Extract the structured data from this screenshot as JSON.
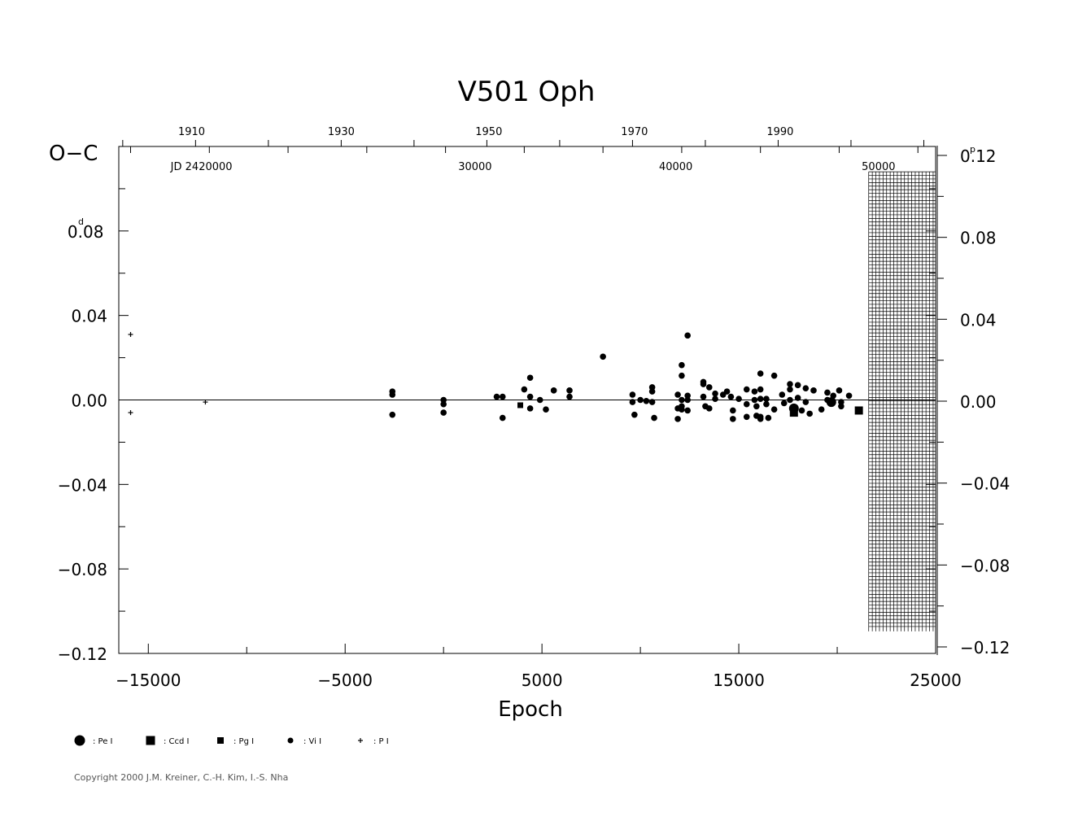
{
  "chart_data": {
    "type": "scatter",
    "title": "V501  Oph",
    "xlabel": "Epoch",
    "ylabel": "O−C",
    "ylabel_unit": "d",
    "right_unit": "p",
    "xlim": [
      -16500,
      25000
    ],
    "ylim": [
      -0.12,
      0.12
    ],
    "right_ylim": [
      -0.12,
      0.12
    ],
    "x_ticks": [
      -15000,
      -5000,
      5000,
      15000,
      25000
    ],
    "x_tick_labels": [
      "−15000",
      "−5000",
      "5000",
      "15000",
      "25000"
    ],
    "y_ticks": [
      0.08,
      0.04,
      0.0,
      -0.04,
      -0.08,
      -0.12
    ],
    "y_tick_labels": [
      "0.08",
      "0.04",
      "0.00",
      "−0.04",
      "−0.08",
      "−0.12"
    ],
    "y_top_label": "0.",
    "right_ticks": [
      0.12,
      0.08,
      0.04,
      0.0,
      -0.04,
      -0.08,
      -0.12
    ],
    "right_tick_labels": [
      "0.12",
      "0.08",
      "0.04",
      "0.00",
      "−0.04",
      "−0.08",
      "−0.12"
    ],
    "year_ticks": [
      {
        "label": "1910",
        "epoch": -12800
      },
      {
        "label": "1930",
        "epoch": -5200
      },
      {
        "label": "1950",
        "epoch": 2300
      },
      {
        "label": "1970",
        "epoch": 9700
      },
      {
        "label": "1990",
        "epoch": 17100
      }
    ],
    "jd_ticks": [
      {
        "label": "JD  2420000",
        "epoch": -12300
      },
      {
        "label": "30000",
        "epoch": 1600
      },
      {
        "label": "40000",
        "epoch": 11800
      },
      {
        "label": "50000",
        "epoch": 22100
      }
    ],
    "zero_line": 0.0,
    "hatched_region": [
      21600,
      25000
    ],
    "legend": [
      {
        "marker": "circle-large",
        "label": ": Pe  I"
      },
      {
        "marker": "square-large",
        "label": ": Ccd  I"
      },
      {
        "marker": "square-small",
        "label": ": Pg  I"
      },
      {
        "marker": "circle-small",
        "label": ": Vi  I"
      },
      {
        "marker": "plus",
        "label": ": P  I"
      }
    ],
    "series": [
      {
        "name": "P I",
        "marker": "plus",
        "points": [
          [
            -15900,
            0.031
          ],
          [
            -15900,
            -0.006
          ],
          [
            -12100,
            -0.001
          ]
        ]
      },
      {
        "name": "Pg I",
        "marker": "square-small",
        "points": [
          [
            3900,
            -0.0025
          ]
        ]
      },
      {
        "name": "Ccd I",
        "marker": "square-large",
        "points": [
          [
            17800,
            -0.006
          ],
          [
            21100,
            -0.005
          ]
        ]
      },
      {
        "name": "Pe I",
        "marker": "circle-large",
        "points": [
          [
            17800,
            -0.004
          ],
          [
            19700,
            -0.001
          ]
        ]
      },
      {
        "name": "Vi I",
        "marker": "circle-small",
        "points": [
          [
            -2600,
            0.004
          ],
          [
            -2600,
            0.0025
          ],
          [
            -2600,
            -0.007
          ],
          [
            0,
            0.0
          ],
          [
            0,
            -0.002
          ],
          [
            0,
            -0.006
          ],
          [
            2700,
            0.0015
          ],
          [
            3000,
            0.0015
          ],
          [
            3000,
            -0.0085
          ],
          [
            4100,
            0.005
          ],
          [
            4400,
            0.0105
          ],
          [
            4400,
            0.0015
          ],
          [
            4400,
            -0.004
          ],
          [
            4900,
            0.0
          ],
          [
            5200,
            -0.0045
          ],
          [
            5600,
            0.0045
          ],
          [
            6400,
            0.0045
          ],
          [
            6400,
            0.0015
          ],
          [
            8100,
            0.0205
          ],
          [
            9600,
            0.0025
          ],
          [
            9600,
            -0.001
          ],
          [
            9700,
            -0.007
          ],
          [
            10000,
            0.0
          ],
          [
            10300,
            -0.0005
          ],
          [
            10600,
            0.006
          ],
          [
            10600,
            0.004
          ],
          [
            10600,
            -0.001
          ],
          [
            10700,
            -0.0085
          ],
          [
            11900,
            0.0025
          ],
          [
            11900,
            -0.004
          ],
          [
            11900,
            -0.009
          ],
          [
            12100,
            0.0165
          ],
          [
            12100,
            0.0115
          ],
          [
            12100,
            0.0
          ],
          [
            12100,
            -0.003
          ],
          [
            12100,
            -0.0045
          ],
          [
            12400,
            0.0305
          ],
          [
            12400,
            0.002
          ],
          [
            12400,
            0.0
          ],
          [
            12400,
            -0.005
          ],
          [
            13200,
            0.0085
          ],
          [
            13200,
            0.0075
          ],
          [
            13200,
            0.0015
          ],
          [
            13300,
            -0.003
          ],
          [
            13500,
            0.006
          ],
          [
            13500,
            -0.004
          ],
          [
            13800,
            0.003
          ],
          [
            13800,
            0.0005
          ],
          [
            14200,
            0.0025
          ],
          [
            14400,
            0.004
          ],
          [
            14600,
            0.0015
          ],
          [
            14700,
            -0.005
          ],
          [
            14700,
            -0.009
          ],
          [
            15000,
            0.0005
          ],
          [
            15400,
            0.005
          ],
          [
            15400,
            -0.002
          ],
          [
            15400,
            -0.008
          ],
          [
            15800,
            0.004
          ],
          [
            15800,
            0.0
          ],
          [
            15900,
            -0.003
          ],
          [
            15900,
            -0.0075
          ],
          [
            16100,
            0.0125
          ],
          [
            16100,
            0.005
          ],
          [
            16100,
            0.0005
          ],
          [
            16100,
            -0.008
          ],
          [
            16100,
            -0.009
          ],
          [
            16400,
            0.0005
          ],
          [
            16400,
            -0.002
          ],
          [
            16500,
            -0.0085
          ],
          [
            16800,
            0.0115
          ],
          [
            16800,
            -0.0045
          ],
          [
            17200,
            0.0025
          ],
          [
            17300,
            -0.0015
          ],
          [
            17600,
            0.0075
          ],
          [
            17600,
            0.005
          ],
          [
            17600,
            0.0
          ],
          [
            18000,
            0.007
          ],
          [
            18000,
            0.001
          ],
          [
            18200,
            -0.005
          ],
          [
            18400,
            0.0055
          ],
          [
            18400,
            -0.001
          ],
          [
            18600,
            -0.0065
          ],
          [
            18800,
            0.0045
          ],
          [
            19200,
            -0.0045
          ],
          [
            19500,
            0.0035
          ],
          [
            19500,
            0.0
          ],
          [
            19800,
            0.002
          ],
          [
            20100,
            0.0045
          ],
          [
            20200,
            -0.001
          ],
          [
            20200,
            -0.003
          ],
          [
            20600,
            0.002
          ]
        ]
      }
    ]
  },
  "copyright": "Copyright 2000 J.M. Kreiner, C.-H. Kim, I.-S. Nha"
}
